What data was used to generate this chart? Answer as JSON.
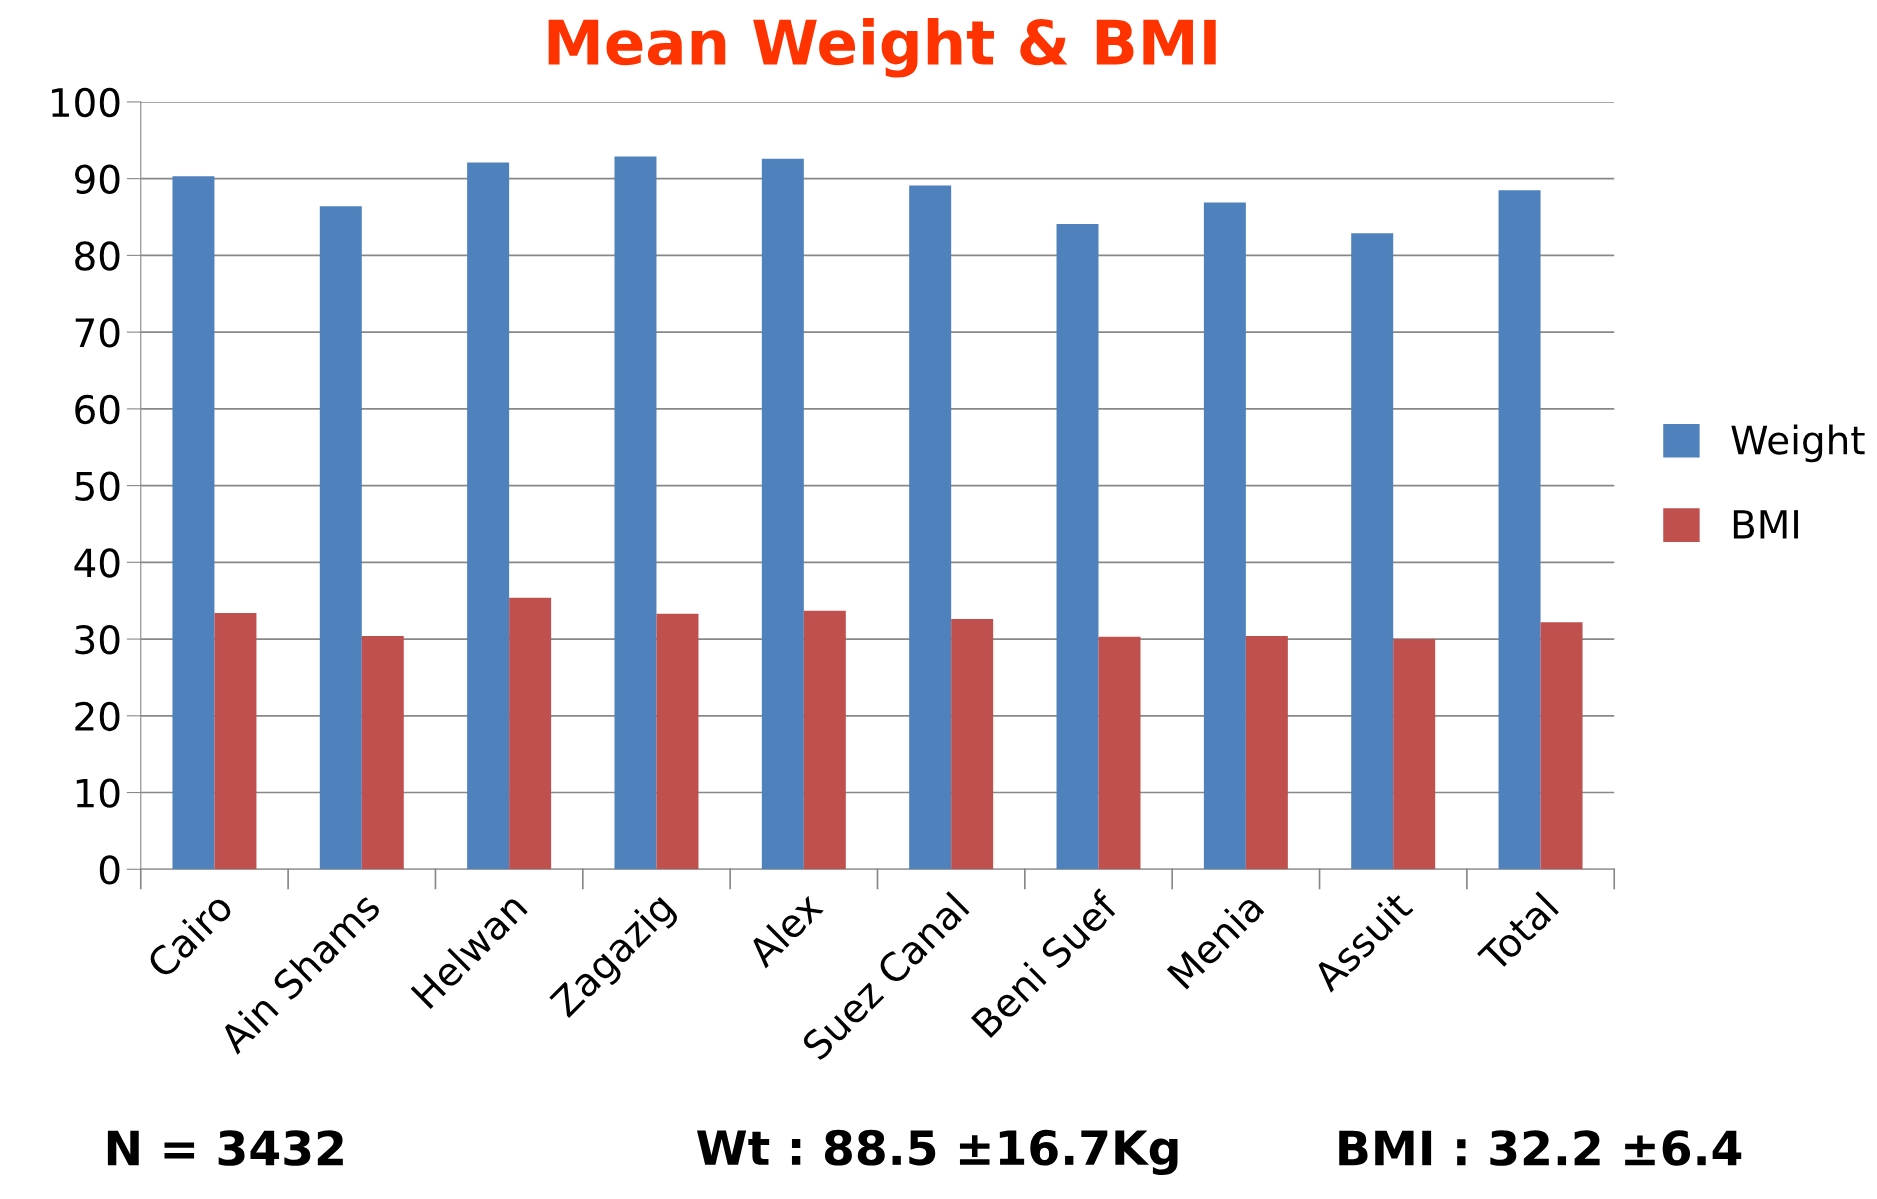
{
  "chart_data": {
    "type": "bar",
    "title": "Mean Weight & BMI",
    "categories": [
      "Cairo",
      "Ain Shams",
      "Helwan",
      "Zagazig",
      "Alex",
      "Suez Canal",
      "Beni Suef",
      "Menia",
      "Assuit",
      "Total"
    ],
    "series": [
      {
        "name": "Weight",
        "color": "#4f81bd",
        "values": [
          90.3,
          86.4,
          92.1,
          92.9,
          92.6,
          89.1,
          84.1,
          86.9,
          82.9,
          88.5
        ]
      },
      {
        "name": "BMI",
        "color": "#c0504d",
        "values": [
          33.4,
          30.4,
          35.4,
          33.3,
          33.7,
          32.6,
          30.3,
          30.4,
          30.0,
          32.2
        ]
      }
    ],
    "ylim": [
      0,
      100
    ],
    "yticks": [
      0,
      10,
      20,
      30,
      40,
      50,
      60,
      70,
      80,
      90,
      100
    ],
    "grid": "y",
    "legend": "right",
    "annotations": [
      "N = 3432",
      "Wt : 88.5 ±16.7Kg",
      "BMI : 32.2 ±6.4"
    ]
  }
}
